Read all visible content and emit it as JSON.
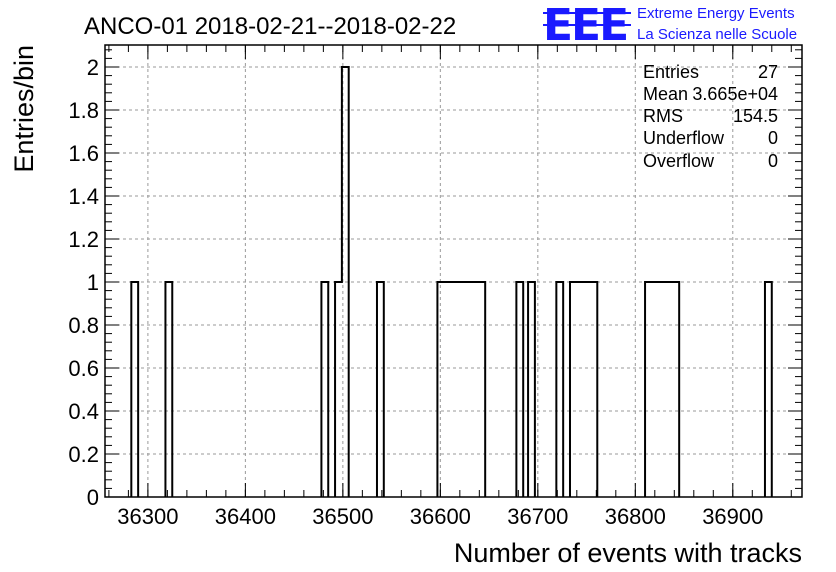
{
  "chart_data": {
    "type": "histogram",
    "title": "ANCO-01 2018-02-21--2018-02-22",
    "xlabel": "Number of events with tracks",
    "ylabel": "Entries/bin",
    "xlim": [
      36256,
      36971
    ],
    "ylim": [
      0,
      2.1
    ],
    "grid": true,
    "xticks": [
      36300,
      36400,
      36500,
      36600,
      36700,
      36800,
      36900
    ],
    "yticks": [
      0,
      0.2,
      0.4,
      0.6,
      0.8,
      1,
      1.2,
      1.4,
      1.6,
      1.8,
      2
    ],
    "ytick_labels": [
      "0",
      "0.2",
      "0.4",
      "0.6",
      "0.8",
      "1",
      "1.2",
      "1.4",
      "1.6",
      "1.8",
      "2"
    ],
    "bins": [
      {
        "x0": 36283,
        "x1": 36290,
        "count": 1
      },
      {
        "x0": 36318,
        "x1": 36325,
        "count": 1
      },
      {
        "x0": 36478,
        "x1": 36485,
        "count": 1
      },
      {
        "x0": 36492,
        "x1": 36499,
        "count": 1
      },
      {
        "x0": 36499,
        "x1": 36506,
        "count": 2
      },
      {
        "x0": 36535,
        "x1": 36542,
        "count": 1
      },
      {
        "x0": 36597,
        "x1": 36604,
        "count": 1
      },
      {
        "x0": 36604,
        "x1": 36611,
        "count": 1
      },
      {
        "x0": 36611,
        "x1": 36618,
        "count": 1
      },
      {
        "x0": 36618,
        "x1": 36625,
        "count": 1
      },
      {
        "x0": 36625,
        "x1": 36632,
        "count": 1
      },
      {
        "x0": 36632,
        "x1": 36639,
        "count": 1
      },
      {
        "x0": 36639,
        "x1": 36646,
        "count": 1
      },
      {
        "x0": 36678,
        "x1": 36685,
        "count": 1
      },
      {
        "x0": 36690,
        "x1": 36697,
        "count": 1
      },
      {
        "x0": 36719,
        "x1": 36726,
        "count": 1
      },
      {
        "x0": 36733,
        "x1": 36740,
        "count": 1
      },
      {
        "x0": 36740,
        "x1": 36747,
        "count": 1
      },
      {
        "x0": 36747,
        "x1": 36754,
        "count": 1
      },
      {
        "x0": 36754,
        "x1": 36761,
        "count": 1
      },
      {
        "x0": 36810,
        "x1": 36817,
        "count": 1
      },
      {
        "x0": 36817,
        "x1": 36824,
        "count": 1
      },
      {
        "x0": 36824,
        "x1": 36831,
        "count": 1
      },
      {
        "x0": 36831,
        "x1": 36838,
        "count": 1
      },
      {
        "x0": 36838,
        "x1": 36845,
        "count": 1
      },
      {
        "x0": 36933,
        "x1": 36940,
        "count": 1
      }
    ],
    "stats": [
      {
        "label": "Entries",
        "value": "27"
      },
      {
        "label": "Mean",
        "value": "3.665e+04"
      },
      {
        "label": "RMS",
        "value": "154.5"
      },
      {
        "label": "Underflow",
        "value": "0"
      },
      {
        "label": "Overflow",
        "value": "0"
      }
    ]
  },
  "logo": {
    "mark": "EEE",
    "line1": "Extreme Energy Events",
    "line2": "La Scienza nelle Scuole",
    "color": "#1a1aff"
  }
}
